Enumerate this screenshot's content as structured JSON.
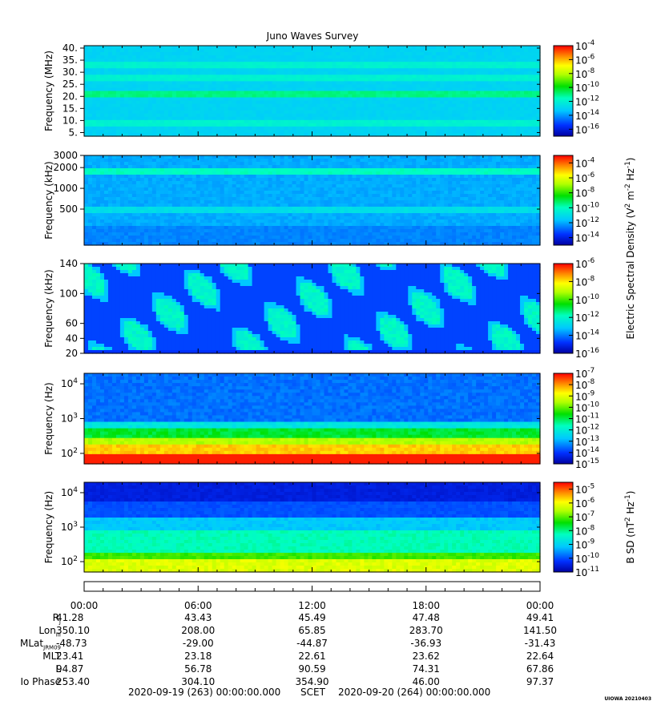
{
  "title": "Juno Waves Survey",
  "chart_data": [
    {
      "type": "heatmap",
      "ylabel": "Frequency (MHz)",
      "yticks": [
        "40.",
        "35.",
        "30.",
        "25.",
        "20.",
        "15.",
        "10.",
        "5."
      ],
      "yscale": "linear",
      "ylim": [
        3.5,
        41
      ],
      "colorbar": {
        "min_exp": -17,
        "max_exp": -4,
        "ticks": [
          -4,
          -6,
          -8,
          -10,
          -12,
          -14,
          -16
        ]
      },
      "features": [
        {
          "kind": "band",
          "y": 21,
          "level": -11
        },
        {
          "kind": "band",
          "y": 28,
          "level": -12
        },
        {
          "kind": "band",
          "y": 33,
          "level": -12
        },
        {
          "kind": "band",
          "y": 9,
          "level": -12
        }
      ],
      "background_level": -13
    },
    {
      "type": "heatmap",
      "ylabel": "Frequency (kHz)",
      "yticks": [
        "3000",
        "2000",
        "1000",
        "500"
      ],
      "yscale": "log",
      "ylim": [
        150,
        3000
      ],
      "colorbar": {
        "min_exp": -15,
        "max_exp": -3,
        "ticks": [
          -4,
          -6,
          -8,
          -10,
          -12,
          -14
        ]
      },
      "features": [
        {
          "kind": "band",
          "y": 1800,
          "level": -10
        },
        {
          "kind": "band",
          "y": 500,
          "level": -11
        }
      ],
      "background_level": -12
    },
    {
      "type": "heatmap",
      "ylabel": "Frequency (kHz)",
      "yticks": [
        "140",
        "100",
        "60",
        "40",
        "20"
      ],
      "yscale": "linear",
      "ylim": [
        20,
        140
      ],
      "colorbar": {
        "min_exp": -16,
        "max_exp": -6,
        "ticks": [
          -6,
          -8,
          -10,
          -12,
          -14,
          -16
        ]
      },
      "background_level": -14
    },
    {
      "type": "heatmap",
      "ylabel": "Frequency (Hz)",
      "yticks": [
        "10^4",
        "10^3",
        "10^2"
      ],
      "yscale": "log",
      "ylim": [
        50,
        20000
      ],
      "colorbar": {
        "min_exp": -15,
        "max_exp": -7,
        "ticks": [
          -7,
          -8,
          -9,
          -10,
          -11,
          -12,
          -13,
          -14,
          -15
        ]
      },
      "background_level": -13
    },
    {
      "type": "heatmap",
      "ylabel": "Frequency (Hz)",
      "yticks": [
        "10^4",
        "10^3",
        "10^2"
      ],
      "yscale": "log",
      "ylim": [
        50,
        20000
      ],
      "colorbar": {
        "min_exp": -11,
        "max_exp": -4.5,
        "ticks": [
          -5,
          -6,
          -7,
          -8,
          -9,
          -10,
          -11
        ]
      },
      "background_level": -10
    }
  ],
  "colorbar_labels": {
    "electric_a": "Electric Spectral Density (V",
    "electric_b": "2",
    "electric_c": " m",
    "electric_d": "-2",
    "electric_e": " Hz",
    "electric_f": "-1",
    "electric_g": ")",
    "magnetic_a": "B SD (nT",
    "magnetic_b": "2",
    "magnetic_c": " Hz",
    "magnetic_d": "-1",
    "magnetic_e": ")"
  },
  "time_ticks": [
    "00:00",
    "06:00",
    "12:00",
    "18:00",
    "00:00"
  ],
  "ephemeris": {
    "rows": [
      {
        "label": "R",
        "sub": "J",
        "values": [
          "41.28",
          "43.43",
          "45.49",
          "47.48",
          "49.41"
        ]
      },
      {
        "label": "Lon",
        "sub": "III",
        "values": [
          "350.10",
          "208.00",
          "65.85",
          "283.70",
          "141.50"
        ]
      },
      {
        "label": "MLat",
        "sub": "JRM09",
        "values": [
          "-48.73",
          "-29.00",
          "-44.87",
          "-36.93",
          "-31.43"
        ]
      },
      {
        "label": "MLT",
        "sub": "",
        "values": [
          "23.41",
          "23.18",
          "22.61",
          "23.62",
          "22.64"
        ]
      },
      {
        "label": "L",
        "sub": "",
        "values": [
          "94.87",
          "56.78",
          "90.59",
          "74.31",
          "67.86"
        ]
      },
      {
        "label": "Io Phase",
        "sub": "",
        "values": [
          "253.40",
          "304.10",
          "354.90",
          "46.00",
          "97.37"
        ]
      }
    ]
  },
  "footer": {
    "start": "2020-09-19 (263) 00:00:00.000",
    "mid": "SCET",
    "end": "2020-09-20 (264) 00:00:00.000"
  },
  "credit": "UIOWA 20210403"
}
